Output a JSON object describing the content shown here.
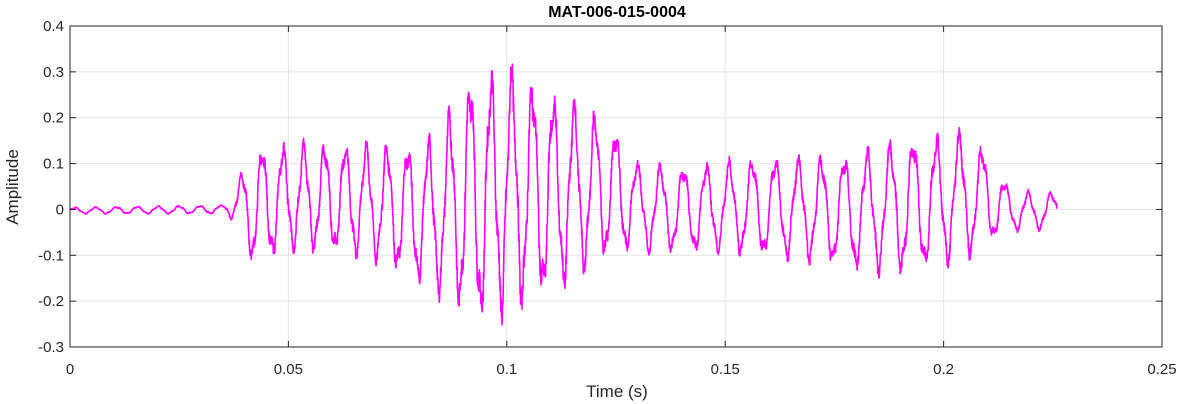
{
  "chart_data": {
    "type": "line",
    "title": "MAT-006-015-0004",
    "xlabel": "Time (s)",
    "ylabel": "Amplitude",
    "xlim": [
      0,
      0.25
    ],
    "ylim": [
      -0.3,
      0.4
    ],
    "x_ticks": [
      0,
      0.05,
      0.1,
      0.15,
      0.2,
      0.25
    ],
    "x_tick_labels": [
      "0",
      "0.05",
      "0.1",
      "0.15",
      "0.2",
      "0.25"
    ],
    "y_ticks": [
      -0.3,
      -0.2,
      -0.1,
      0,
      0.1,
      0.2,
      0.3,
      0.4
    ],
    "y_tick_labels": [
      "-0.3",
      "-0.2",
      "-0.1",
      "0",
      "0.1",
      "0.2",
      "0.3",
      "0.4"
    ],
    "grid": true,
    "series": [
      {
        "color": "#ff00ff",
        "x_start": 0,
        "x_end": 0.226,
        "envelope": {
          "x": [
            0,
            0.035,
            0.038,
            0.042,
            0.05,
            0.06,
            0.07,
            0.08,
            0.085,
            0.09,
            0.095,
            0.1,
            0.105,
            0.11,
            0.115,
            0.12,
            0.125,
            0.13,
            0.14,
            0.15,
            0.16,
            0.17,
            0.18,
            0.19,
            0.2,
            0.205,
            0.21,
            0.215,
            0.22,
            0.226
          ],
          "max": [
            0.005,
            0.01,
            0.06,
            0.14,
            0.15,
            0.15,
            0.15,
            0.15,
            0.18,
            0.3,
            0.31,
            0.33,
            0.3,
            0.27,
            0.25,
            0.22,
            0.18,
            0.11,
            0.1,
            0.11,
            0.12,
            0.12,
            0.13,
            0.16,
            0.17,
            0.18,
            0.13,
            0.05,
            0.04,
            0.04
          ],
          "min": [
            -0.01,
            -0.01,
            -0.03,
            -0.13,
            -0.1,
            -0.1,
            -0.12,
            -0.17,
            -0.2,
            -0.24,
            -0.26,
            -0.24,
            -0.22,
            -0.2,
            -0.17,
            -0.13,
            -0.1,
            -0.1,
            -0.1,
            -0.1,
            -0.11,
            -0.12,
            -0.14,
            -0.15,
            -0.13,
            -0.12,
            -0.08,
            -0.05,
            -0.05,
            -0.04
          ]
        }
      }
    ]
  }
}
